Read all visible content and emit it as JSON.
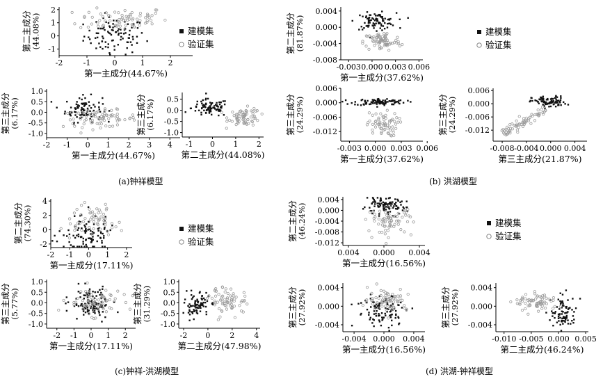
{
  "captions": {
    "a": "(a)钟祥模型",
    "b": "(b) 洪湖模型",
    "c": "(c)钟祥-洪湖模型",
    "d": "(d) 洪湖-钟祥模型"
  },
  "legend_labels": {
    "model": "建模集",
    "validation": "验证集"
  },
  "chart_data": [
    {
      "panel": "a1",
      "type": "scatter",
      "xlabel": "第一主成分(44.67%)",
      "ylabel": "第二主成分",
      "ylabel_pct": "(44.08%)",
      "xlim": [
        -2,
        2.8
      ],
      "ylim": [
        -1.5,
        2.2
      ],
      "xticks": [
        "-2",
        "-1",
        "0",
        "1",
        "2"
      ],
      "yticks": [
        "-1",
        "0",
        "1",
        "2"
      ],
      "series": [
        {
          "name": "建模集",
          "cx": 0.0,
          "cy": 0.0,
          "sx": 0.55,
          "sy": 0.7,
          "n": 95
        },
        {
          "name": "验证集",
          "cx": 0.3,
          "cy": 1.3,
          "sx": 0.8,
          "sy": 0.45,
          "n": 75
        }
      ]
    },
    {
      "panel": "a2",
      "type": "scatter",
      "xlabel": "第一主成分(44.67%)",
      "ylabel": "第三主成分",
      "ylabel_pct": "(6.17%)",
      "xlim": [
        -2,
        4.5
      ],
      "ylim": [
        -1.2,
        1.1
      ],
      "xticks": [
        "-2",
        "-1",
        "0",
        "1",
        "2",
        "3",
        "4"
      ],
      "yticks": [
        "-1.0",
        "-0.5",
        "0.0",
        "0.5",
        "1.0"
      ],
      "series": [
        {
          "name": "建模集",
          "cx": -0.2,
          "cy": 0.15,
          "sx": 0.45,
          "sy": 0.3,
          "n": 90
        },
        {
          "name": "验证集",
          "cx": 0.6,
          "cy": -0.3,
          "sx": 0.9,
          "sy": 0.2,
          "n": 75
        }
      ]
    },
    {
      "panel": "a3",
      "type": "scatter",
      "xlabel": "第二主成分(44.08%)",
      "ylabel": "第三主成分",
      "ylabel_pct": "(6.17%)",
      "xlim": [
        -1.3,
        2.2
      ],
      "ylim": [
        -1.2,
        0.8
      ],
      "xticks": [
        "-1",
        "0",
        "1",
        "2"
      ],
      "yticks": [
        "-1.0",
        "-0.5",
        "0.0",
        "0.5"
      ],
      "series": [
        {
          "name": "建模集",
          "cx": -0.1,
          "cy": 0.1,
          "sx": 0.4,
          "sy": 0.2,
          "n": 85
        },
        {
          "name": "验证集",
          "cx": 1.4,
          "cy": -0.3,
          "sx": 0.35,
          "sy": 0.2,
          "n": 70
        }
      ]
    },
    {
      "panel": "b1",
      "type": "scatter",
      "xlabel": "第一主成分(37.62%)",
      "ylabel": "第二主成分",
      "ylabel_pct": "(81.87%)",
      "xlim": [
        -0.004,
        0.0065
      ],
      "ylim": [
        -0.008,
        0.005
      ],
      "xticks": [
        "-0.003",
        "0.000",
        "0.003",
        "0.006"
      ],
      "yticks": [
        "-0.008",
        "-0.004",
        "0.000",
        "0.004"
      ],
      "series": [
        {
          "name": "建模集",
          "cx": 0.0005,
          "cy": 0.0015,
          "sx": 0.0013,
          "sy": 0.001,
          "n": 90
        },
        {
          "name": "验证集",
          "cx": 0.0013,
          "cy": -0.0035,
          "sx": 0.0012,
          "sy": 0.0012,
          "n": 75
        }
      ]
    },
    {
      "panel": "b2",
      "type": "scatter",
      "xlabel": "第一主成分(37.62%)",
      "ylabel": "第三主成分",
      "ylabel_pct": "(24.29%)",
      "xlim": [
        -0.004,
        0.0055
      ],
      "ylim": [
        -0.016,
        0.006
      ],
      "xticks": [
        "-0.003",
        "0.000",
        "0.003",
        "0.006"
      ],
      "yticks": [
        "-0.012",
        "-0.006",
        "0.000",
        "0.006"
      ],
      "series": [
        {
          "name": "建模集",
          "cx": 0.0005,
          "cy": 0.0003,
          "sx": 0.0015,
          "sy": 0.0007,
          "n": 95
        },
        {
          "name": "验证集",
          "cx": 0.0008,
          "cy": -0.009,
          "sx": 0.0009,
          "sy": 0.0025,
          "n": 65
        }
      ]
    },
    {
      "panel": "b3",
      "type": "scatter",
      "xlabel": "第三主成分(21.87%)",
      "ylabel": "第三主成分",
      "ylabel_pct": "(24.29%)",
      "xlim": [
        -0.0095,
        0.006
      ],
      "ylim": [
        -0.017,
        0.007
      ],
      "xticks": [
        "-0.008",
        "-0.004",
        "0.000",
        "0.004"
      ],
      "yticks": [
        "-0.012",
        "-0.006",
        "0.000",
        "0.006"
      ],
      "series": [
        {
          "name": "建模集",
          "cx": -0.0003,
          "cy": 0.0008,
          "sx": 0.0014,
          "sy": 0.0013,
          "n": 85
        },
        {
          "name": "验证集",
          "trend": true,
          "x0": -0.008,
          "x1": -0.0008,
          "y0": -0.0135,
          "y1": -0.003,
          "jitter": 0.0012,
          "n": 70
        }
      ]
    },
    {
      "panel": "c1",
      "type": "scatter",
      "xlabel": "第一主成分(17.11%)",
      "ylabel": "第二主成分",
      "ylabel_pct": "(74.30%)",
      "xlim": [
        -2,
        2.3
      ],
      "ylim": [
        -2.5,
        4.3
      ],
      "xticks": [
        "-2",
        "-1",
        "0",
        "1",
        "2"
      ],
      "yticks": [
        "-2",
        "0",
        "2",
        "4"
      ],
      "series": [
        {
          "name": "建模集",
          "cx": -0.1,
          "cy": -0.5,
          "sx": 0.6,
          "sy": 1.4,
          "n": 100
        },
        {
          "name": "验证集",
          "cx": 0.3,
          "cy": 1.4,
          "sx": 0.6,
          "sy": 1.2,
          "n": 60
        }
      ]
    },
    {
      "panel": "c2",
      "type": "scatter",
      "xlabel": "第一主成分(17.11%)",
      "ylabel": "第三主成分",
      "ylabel_pct": "(5.77%)",
      "xlim": [
        -2.6,
        2.6
      ],
      "ylim": [
        -1.2,
        1.1
      ],
      "xticks": [
        "-2",
        "-1",
        "0",
        "1",
        "2"
      ],
      "yticks": [
        "-1.0",
        "-0.5",
        "0.0",
        "0.5",
        "1.0"
      ],
      "series": [
        {
          "name": "建模集",
          "cx": 0.0,
          "cy": -0.05,
          "sx": 0.6,
          "sy": 0.35,
          "n": 110
        },
        {
          "name": "验证集",
          "cx": 0.1,
          "cy": 0.05,
          "sx": 0.8,
          "sy": 0.3,
          "n": 70
        }
      ]
    },
    {
      "panel": "c3",
      "type": "scatter",
      "xlabel": "第二主成分(47.98%)",
      "ylabel": "第三主成分",
      "ylabel_pct": "(31.29%)",
      "xlim": [
        -2.4,
        4.3
      ],
      "ylim": [
        -1.2,
        1.1
      ],
      "xticks": [
        "-2",
        "0",
        "2",
        "4"
      ],
      "yticks": [
        "-1.0",
        "-0.5",
        "0.0",
        "0.5",
        "1.0"
      ],
      "series": [
        {
          "name": "建模集",
          "cx": -0.9,
          "cy": -0.1,
          "sx": 0.5,
          "sy": 0.3,
          "n": 85
        },
        {
          "name": "验证集",
          "cx": 1.8,
          "cy": 0.1,
          "sx": 0.8,
          "sy": 0.3,
          "n": 70
        }
      ]
    },
    {
      "panel": "d1",
      "type": "scatter",
      "xlabel": "第一主成分(16.56%)",
      "ylabel": "第二主成分",
      "ylabel_pct": "(46.24%)",
      "xlim": [
        -0.0055,
        0.0055
      ],
      "ylim": [
        -0.013,
        0.005
      ],
      "xticks": [
        "0.004",
        "0.000",
        "0.004"
      ],
      "yticks": [
        "-0.012",
        "-0.008",
        "-0.004",
        "0.000",
        "0.004"
      ],
      "series": [
        {
          "name": "建模集",
          "cx": 0.0,
          "cy": 0.0015,
          "sx": 0.0015,
          "sy": 0.0015,
          "n": 100
        },
        {
          "name": "验证集",
          "cx": 0.0008,
          "cy": -0.004,
          "sx": 0.0015,
          "sy": 0.0025,
          "n": 70
        }
      ]
    },
    {
      "panel": "d2",
      "type": "scatter",
      "xlabel": "第一主成分(16.56%)",
      "ylabel": "第三主成分",
      "ylabel_pct": "(27.92%)",
      "xlim": [
        -0.0055,
        0.0055
      ],
      "ylim": [
        -0.0055,
        0.005
      ],
      "xticks": [
        "-0.004",
        "0.000",
        "0.004"
      ],
      "yticks": [
        "-0.004",
        "0.000",
        "0.004"
      ],
      "series": [
        {
          "name": "建模集",
          "cx": 0.0,
          "cy": -0.001,
          "sx": 0.0018,
          "sy": 0.0018,
          "n": 100
        },
        {
          "name": "验证集",
          "cx": 0.0005,
          "cy": 0.0015,
          "sx": 0.0013,
          "sy": 0.0012,
          "n": 70
        }
      ]
    },
    {
      "panel": "d3",
      "type": "scatter",
      "xlabel": "第二主成分(46.24%)",
      "ylabel": "第三主成分",
      "ylabel_pct": "(27.92%)",
      "xlim": [
        -0.0115,
        0.0055
      ],
      "ylim": [
        -0.0055,
        0.005
      ],
      "xticks": [
        "-0.010",
        "-0.005",
        "0.000",
        "0.005"
      ],
      "yticks": [
        "-0.004",
        "0.000",
        "0.004"
      ],
      "series": [
        {
          "name": "建模集",
          "cx": 0.001,
          "cy": -0.0015,
          "sx": 0.0012,
          "sy": 0.0018,
          "n": 85
        },
        {
          "name": "验证集",
          "cx": -0.004,
          "cy": 0.0008,
          "sx": 0.002,
          "sy": 0.0009,
          "n": 70
        }
      ]
    }
  ]
}
